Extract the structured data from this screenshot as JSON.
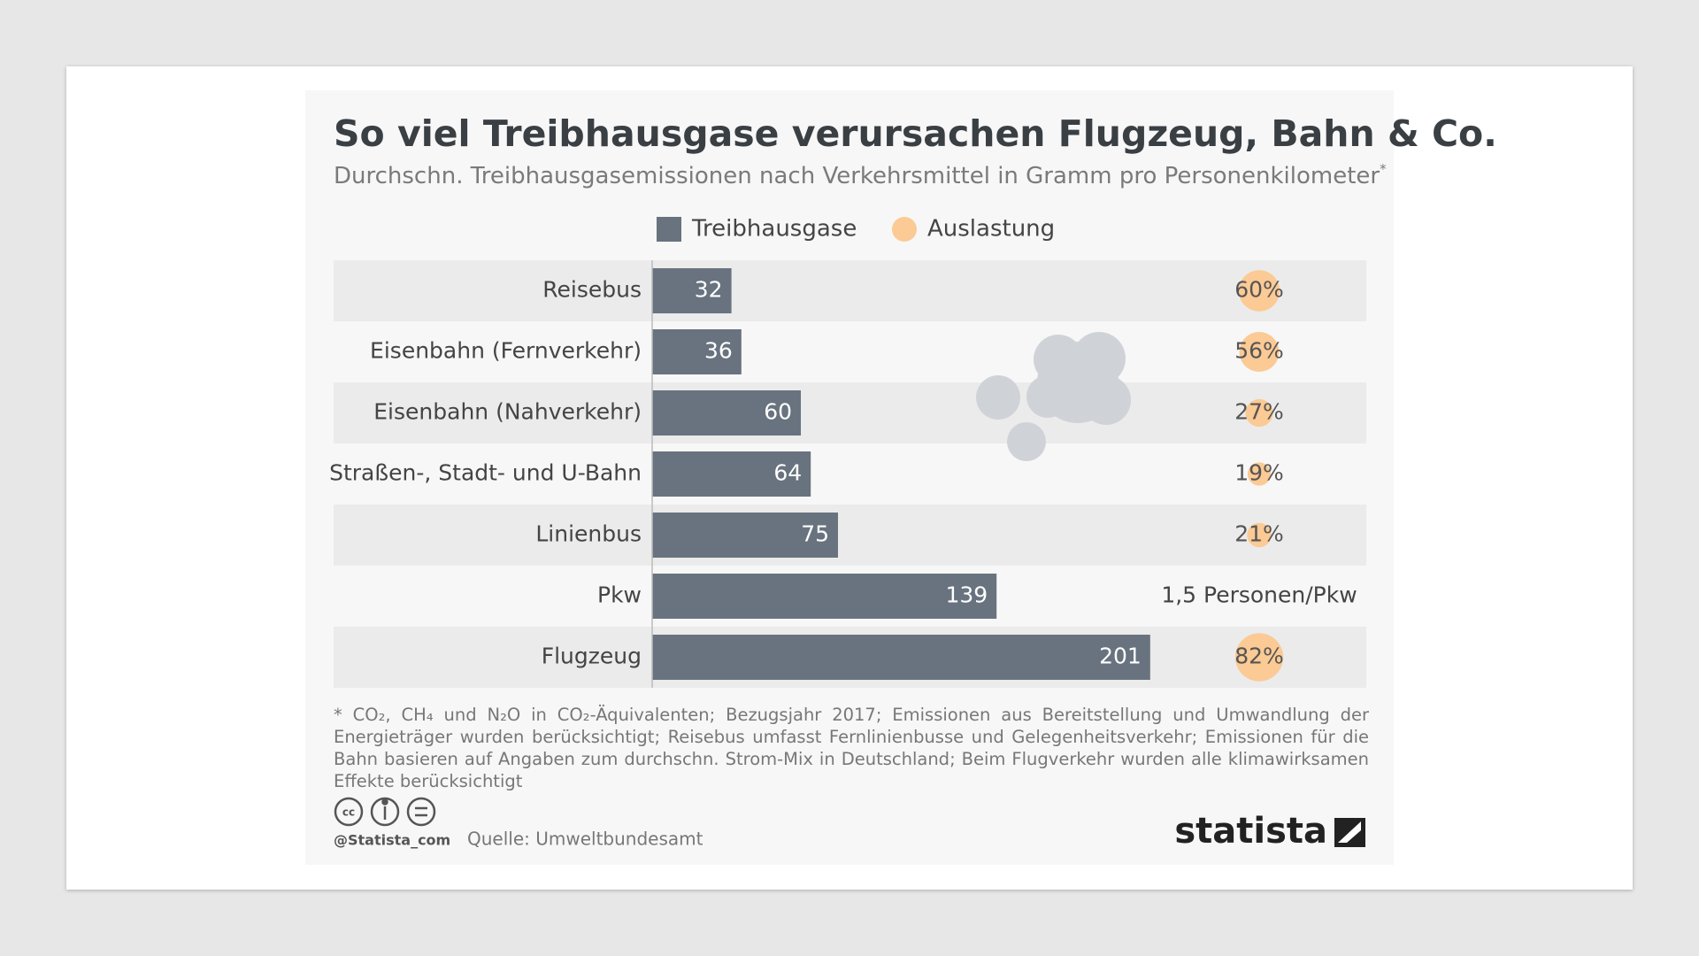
{
  "chart_data": {
    "type": "bar",
    "orientation": "horizontal",
    "title": "So viel Treibhausgase verursachen Flugzeug, Bahn & Co.",
    "subtitle": "Durchschn. Treibhausgasemissionen nach Verkehrsmittel in Gramm pro Personenkilometer",
    "subtitle_marker": "*",
    "categories": [
      "Reisebus",
      "Eisenbahn (Fernverkehr)",
      "Eisenbahn (Nahverkehr)",
      "Straßen-, Stadt- und U-Bahn",
      "Linienbus",
      "Pkw",
      "Flugzeug"
    ],
    "series": [
      {
        "name": "Treibhausgase",
        "color": "#68737f",
        "values": [
          32,
          36,
          60,
          64,
          75,
          139,
          201
        ]
      },
      {
        "name": "Auslastung",
        "color": "#fbca95",
        "marker": "circle",
        "values": [
          60,
          56,
          27,
          19,
          21,
          null,
          82
        ],
        "value_labels": [
          "60%",
          "56%",
          "27%",
          "19%",
          "21%",
          null,
          "82%"
        ]
      }
    ],
    "annotation": {
      "category": "Pkw",
      "text": "1,5 Personen/Pkw"
    },
    "xlim": [
      0,
      250
    ],
    "footnote": "* CO₂, CH₄ und N₂O in CO₂-Äquivalenten; Bezugsjahr 2017; Emissionen aus Bereitstellung und Umwandlung der Energieträger wurden berücksichtigt; Reisebus umfasst Fernlinienbusse und Gelegenheitsverkehr; Emissionen für die Bahn basieren auf Angaben zum durchschn. Strom-Mix in Deutschland; Beim Flugverkehr wurden alle klimawirksamen Effekte berücksichtigt",
    "credit": "@Statista_com",
    "source": "Quelle: Umweltbundesamt",
    "brand": "statista"
  }
}
